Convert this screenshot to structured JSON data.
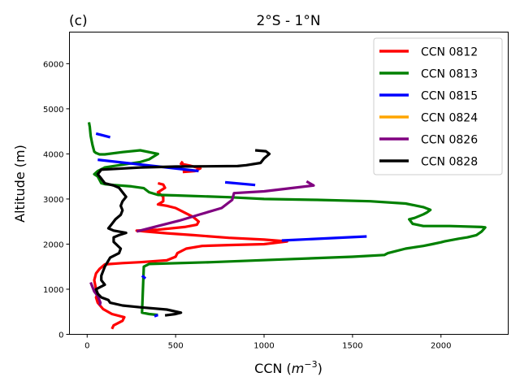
{
  "chart_data": {
    "type": "line",
    "panel_label": "(c)",
    "title": "2°S - 1°N",
    "xlabel": "CCN",
    "xlabel_unit_base": "m",
    "xlabel_unit_exp": "−3",
    "ylabel": "Altitude (m)",
    "xlim": [
      -100,
      2380
    ],
    "ylim": [
      0,
      6700
    ],
    "xticks": [
      0,
      500,
      1000,
      1500,
      2000
    ],
    "xtick_labels": [
      "0",
      "500",
      "1000",
      "1500",
      "2000"
    ],
    "yticks": [
      0,
      1000,
      2000,
      3000,
      4000,
      5000,
      6000
    ],
    "ytick_labels": [
      "0",
      "1000",
      "2000",
      "3000",
      "4000",
      "5000",
      "6000"
    ],
    "grid": false,
    "legend_position": "top-right",
    "series": [
      {
        "name": "CCN 0812",
        "color": "#ff0000",
        "segments": [
          [
            [
              140,
              120
            ],
            [
              150,
              200
            ],
            [
              200,
              300
            ],
            [
              210,
              380
            ],
            [
              140,
              450
            ],
            [
              90,
              560
            ],
            [
              60,
              700
            ],
            [
              50,
              820
            ],
            [
              60,
              900
            ],
            [
              50,
              1000
            ],
            [
              40,
              1200
            ],
            [
              50,
              1350
            ],
            [
              70,
              1450
            ],
            [
              100,
              1550
            ],
            [
              200,
              1580
            ],
            [
              300,
              1600
            ],
            [
              450,
              1640
            ],
            [
              500,
              1720
            ],
            [
              510,
              1800
            ],
            [
              560,
              1900
            ],
            [
              650,
              1960
            ],
            [
              800,
              1980
            ],
            [
              1000,
              2000
            ],
            [
              1130,
              2060
            ],
            [
              1000,
              2100
            ],
            [
              800,
              2140
            ],
            [
              600,
              2200
            ],
            [
              450,
              2240
            ],
            [
              330,
              2280
            ],
            [
              280,
              2300
            ],
            [
              400,
              2320
            ],
            [
              550,
              2380
            ],
            [
              620,
              2430
            ],
            [
              630,
              2500
            ],
            [
              600,
              2600
            ],
            [
              550,
              2700
            ],
            [
              500,
              2800
            ],
            [
              450,
              2850
            ],
            [
              400,
              2880
            ],
            [
              430,
              2950
            ],
            [
              430,
              3050
            ],
            [
              400,
              3150
            ],
            [
              440,
              3250
            ],
            [
              430,
              3320
            ],
            [
              400,
              3350
            ]
          ],
          [
            [
              540,
              3600
            ],
            [
              610,
              3620
            ],
            [
              640,
              3680
            ],
            [
              580,
              3740
            ],
            [
              530,
              3780
            ],
            [
              540,
              3830
            ]
          ]
        ]
      },
      {
        "name": "CCN 0813",
        "color": "#008000",
        "segments": [
          [
            [
              400,
              430
            ],
            [
              350,
              450
            ],
            [
              310,
              480
            ],
            [
              320,
              1500
            ],
            [
              350,
              1560
            ],
            [
              700,
              1600
            ],
            [
              1100,
              1660
            ],
            [
              1500,
              1720
            ],
            [
              1680,
              1760
            ],
            [
              1700,
              1800
            ],
            [
              1800,
              1900
            ],
            [
              1900,
              1960
            ],
            [
              1950,
              2000
            ],
            [
              2000,
              2040
            ],
            [
              2020,
              2060
            ],
            [
              2100,
              2120
            ],
            [
              2150,
              2150
            ],
            [
              2200,
              2200
            ],
            [
              2230,
              2280
            ],
            [
              2250,
              2370
            ],
            [
              2230,
              2380
            ],
            [
              2050,
              2400
            ],
            [
              1900,
              2400
            ],
            [
              1840,
              2450
            ],
            [
              1820,
              2550
            ],
            [
              1850,
              2580
            ],
            [
              1900,
              2660
            ],
            [
              1920,
              2700
            ],
            [
              1940,
              2760
            ],
            [
              1900,
              2820
            ],
            [
              1800,
              2900
            ],
            [
              1600,
              2950
            ],
            [
              1300,
              2980
            ],
            [
              1000,
              3000
            ],
            [
              800,
              3040
            ],
            [
              500,
              3080
            ],
            [
              400,
              3090
            ],
            [
              350,
              3150
            ],
            [
              320,
              3240
            ],
            [
              250,
              3280
            ],
            [
              150,
              3310
            ],
            [
              100,
              3330
            ],
            [
              80,
              3350
            ],
            [
              60,
              3500
            ],
            [
              40,
              3550
            ],
            [
              60,
              3620
            ],
            [
              100,
              3700
            ],
            [
              200,
              3760
            ],
            [
              300,
              3820
            ],
            [
              350,
              3880
            ],
            [
              400,
              4000
            ],
            [
              300,
              4080
            ],
            [
              200,
              4040
            ],
            [
              100,
              3990
            ],
            [
              70,
              3990
            ],
            [
              50,
              4020
            ],
            [
              40,
              4050
            ],
            [
              30,
              4200
            ],
            [
              20,
              4400
            ],
            [
              15,
              4600
            ],
            [
              10,
              4700
            ]
          ]
        ]
      },
      {
        "name": "CCN 0815",
        "color": "#0000ff",
        "segments": [
          [
            [
              380,
              400
            ],
            [
              400,
              430
            ]
          ],
          [
            [
              310,
              1300
            ],
            [
              320,
              1270
            ],
            [
              330,
              1240
            ]
          ],
          [
            [
              1100,
              2080
            ],
            [
              1580,
              2170
            ]
          ],
          [
            [
              780,
              3370
            ],
            [
              950,
              3310
            ]
          ],
          [
            [
              60,
              3870
            ],
            [
              630,
              3620
            ]
          ],
          [
            [
              50,
              4450
            ],
            [
              130,
              4370
            ]
          ]
        ]
      },
      {
        "name": "CCN 0824",
        "color": "#ffa500",
        "segments": []
      },
      {
        "name": "CCN 0826",
        "color": "#800080",
        "segments": [
          [
            [
              70,
              640
            ],
            [
              75,
              700
            ],
            [
              60,
              850
            ],
            [
              40,
              950
            ],
            [
              30,
              1050
            ],
            [
              20,
              1150
            ]
          ],
          [
            [
              280,
              2280
            ],
            [
              400,
              2400
            ],
            [
              520,
              2520
            ],
            [
              630,
              2650
            ],
            [
              760,
              2800
            ],
            [
              820,
              2980
            ],
            [
              830,
              3130
            ],
            [
              1000,
              3170
            ],
            [
              1150,
              3240
            ],
            [
              1280,
              3300
            ],
            [
              1240,
              3390
            ]
          ]
        ]
      },
      {
        "name": "CCN 0828",
        "color": "#000000",
        "segments": [
          [
            [
              440,
              420
            ],
            [
              500,
              450
            ],
            [
              530,
              480
            ],
            [
              450,
              550
            ],
            [
              300,
              600
            ],
            [
              200,
              640
            ],
            [
              130,
              700
            ],
            [
              120,
              760
            ],
            [
              80,
              820
            ],
            [
              60,
              900
            ],
            [
              50,
              1000
            ],
            [
              100,
              1100
            ],
            [
              80,
              1200
            ],
            [
              80,
              1300
            ],
            [
              100,
              1500
            ],
            [
              130,
              1700
            ],
            [
              180,
              1800
            ],
            [
              190,
              1900
            ],
            [
              150,
              2050
            ],
            [
              150,
              2150
            ],
            [
              180,
              2200
            ],
            [
              220,
              2250
            ],
            [
              150,
              2300
            ],
            [
              120,
              2350
            ],
            [
              140,
              2450
            ],
            [
              160,
              2550
            ],
            [
              190,
              2650
            ],
            [
              200,
              2750
            ],
            [
              190,
              2850
            ],
            [
              200,
              2950
            ],
            [
              220,
              3050
            ],
            [
              200,
              3150
            ],
            [
              180,
              3250
            ],
            [
              150,
              3300
            ],
            [
              100,
              3350
            ],
            [
              80,
              3450
            ],
            [
              60,
              3550
            ],
            [
              80,
              3650
            ],
            [
              300,
              3700
            ],
            [
              500,
              3720
            ],
            [
              850,
              3730
            ],
            [
              900,
              3750
            ],
            [
              980,
              3800
            ],
            [
              1000,
              3900
            ],
            [
              1030,
              4000
            ],
            [
              1010,
              4060
            ],
            [
              950,
              4080
            ]
          ]
        ]
      }
    ]
  }
}
